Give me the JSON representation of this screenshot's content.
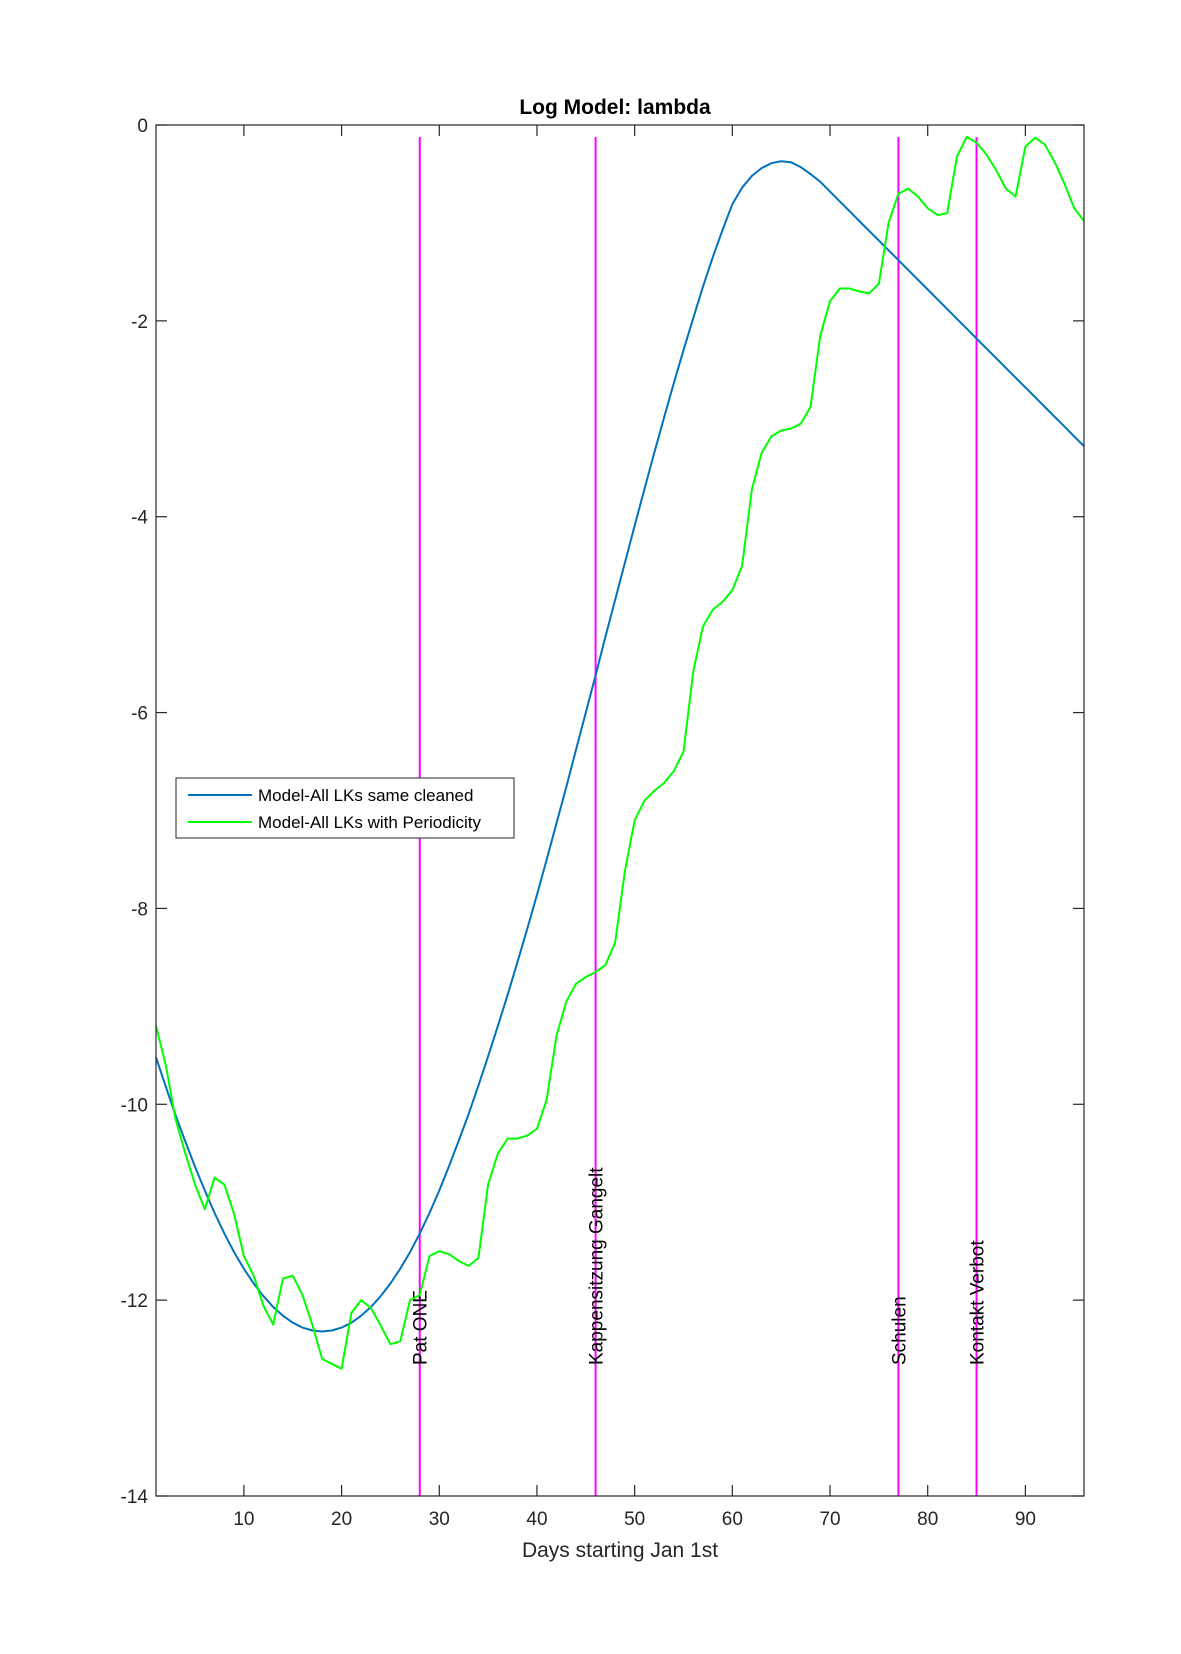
{
  "chart_data": {
    "type": "line",
    "title": "Log Model: lambda",
    "xlabel": "Days starting Jan 1st",
    "ylabel": "",
    "xlim": [
      1,
      96
    ],
    "ylim": [
      -14,
      0
    ],
    "xticks": [
      10,
      20,
      30,
      40,
      50,
      60,
      70,
      80,
      90
    ],
    "yticks": [
      0,
      -2,
      -4,
      -6,
      -8,
      -10,
      -12,
      -14
    ],
    "grid": false,
    "legend_placement": "middle-left",
    "series": [
      {
        "name": "Model-All LKs same cleaned",
        "color": "#0072bd",
        "x": [
          1,
          2,
          3,
          4,
          5,
          6,
          7,
          8,
          9,
          10,
          11,
          12,
          13,
          14,
          15,
          16,
          17,
          18,
          19,
          20,
          21,
          22,
          23,
          24,
          25,
          26,
          27,
          28,
          29,
          30,
          31,
          32,
          33,
          34,
          35,
          36,
          37,
          38,
          39,
          40,
          41,
          42,
          43,
          44,
          45,
          46,
          47,
          48,
          49,
          50,
          51,
          52,
          53,
          54,
          55,
          56,
          57,
          58,
          59,
          60,
          61,
          62,
          63,
          64,
          65,
          66,
          67,
          68,
          69,
          70,
          71,
          72,
          73,
          74,
          75,
          76,
          77,
          78,
          79,
          80,
          81,
          82,
          83,
          84,
          85,
          86,
          87,
          88,
          89,
          90,
          91,
          92,
          93,
          94,
          95,
          96
        ],
        "y": [
          -9.52,
          -9.82,
          -10.11,
          -10.38,
          -10.64,
          -10.88,
          -11.11,
          -11.32,
          -11.51,
          -11.68,
          -11.83,
          -11.96,
          -12.07,
          -12.16,
          -12.23,
          -12.28,
          -12.31,
          -12.32,
          -12.31,
          -12.28,
          -12.23,
          -12.16,
          -12.07,
          -11.96,
          -11.83,
          -11.68,
          -11.51,
          -11.32,
          -11.11,
          -10.88,
          -10.63,
          -10.37,
          -10.1,
          -9.81,
          -9.51,
          -9.2,
          -8.88,
          -8.55,
          -8.21,
          -7.86,
          -7.5,
          -7.13,
          -6.76,
          -6.38,
          -6.0,
          -5.62,
          -5.23,
          -4.85,
          -4.47,
          -4.09,
          -3.72,
          -3.35,
          -2.99,
          -2.64,
          -2.3,
          -1.97,
          -1.65,
          -1.35,
          -1.07,
          -0.81,
          -0.64,
          -0.52,
          -0.44,
          -0.39,
          -0.37,
          -0.38,
          -0.43,
          -0.5,
          -0.58,
          -0.68,
          -0.78,
          -0.88,
          -0.98,
          -1.08,
          -1.18,
          -1.28,
          -1.38,
          -1.48,
          -1.58,
          -1.68,
          -1.78,
          -1.88,
          -1.98,
          -2.08,
          -2.18,
          -2.28,
          -2.38,
          -2.48,
          -2.58,
          -2.68,
          -2.78,
          -2.88,
          -2.98,
          -3.08,
          -3.18,
          -3.28
        ]
      },
      {
        "name": "Model-All LKs with Periodicity",
        "color": "#00ff00",
        "x": [
          1,
          2,
          3,
          4,
          5,
          6,
          7,
          8,
          9,
          10,
          11,
          12,
          13,
          14,
          15,
          16,
          17,
          18,
          19,
          20,
          21,
          22,
          23,
          24,
          25,
          26,
          27,
          28,
          29,
          30,
          31,
          32,
          33,
          34,
          35,
          36,
          37,
          38,
          39,
          40,
          41,
          42,
          43,
          44,
          45,
          46,
          47,
          48,
          49,
          50,
          51,
          52,
          53,
          54,
          55,
          56,
          57,
          58,
          59,
          60,
          61,
          62,
          63,
          64,
          65,
          66,
          67,
          68,
          69,
          70,
          71,
          72,
          73,
          74,
          75,
          76,
          77,
          78,
          79,
          80,
          81,
          82,
          83,
          84,
          85,
          86,
          87,
          88,
          89,
          90,
          91,
          92,
          93,
          94,
          95,
          96
        ],
        "y": [
          -9.2,
          -9.6,
          -10.15,
          -10.5,
          -10.82,
          -11.07,
          -10.75,
          -10.82,
          -11.12,
          -11.55,
          -11.75,
          -12.06,
          -12.25,
          -11.78,
          -11.75,
          -11.95,
          -12.25,
          -12.6,
          -12.65,
          -12.7,
          -12.13,
          -12.0,
          -12.08,
          -12.26,
          -12.45,
          -12.42,
          -12.0,
          -11.95,
          -11.55,
          -11.5,
          -11.53,
          -11.6,
          -11.65,
          -11.57,
          -10.82,
          -10.5,
          -10.35,
          -10.35,
          -10.32,
          -10.25,
          -9.95,
          -9.3,
          -8.95,
          -8.77,
          -8.7,
          -8.65,
          -8.58,
          -8.35,
          -7.62,
          -7.1,
          -6.9,
          -6.8,
          -6.72,
          -6.6,
          -6.4,
          -5.58,
          -5.12,
          -4.95,
          -4.87,
          -4.75,
          -4.5,
          -3.72,
          -3.35,
          -3.18,
          -3.12,
          -3.1,
          -3.05,
          -2.88,
          -2.15,
          -1.8,
          -1.67,
          -1.67,
          -1.7,
          -1.72,
          -1.62,
          -1.0,
          -0.7,
          -0.65,
          -0.73,
          -0.85,
          -0.92,
          -0.9,
          -0.32,
          -0.12,
          -0.18,
          -0.3,
          -0.46,
          -0.65,
          -0.73,
          -0.22,
          -0.13,
          -0.2,
          -0.38,
          -0.6,
          -0.85,
          -0.98
        ]
      }
    ],
    "events": [
      {
        "x": 28,
        "label": "Pat ONE",
        "color": "#ff00ff"
      },
      {
        "x": 46,
        "label": "Kappensitzung Gangelt",
        "color": "#ff00ff"
      },
      {
        "x": 77,
        "label": "Schulen",
        "color": "#ff00ff"
      },
      {
        "x": 85,
        "label": "Kontakt Verbot",
        "color": "#ff00ff"
      }
    ]
  }
}
